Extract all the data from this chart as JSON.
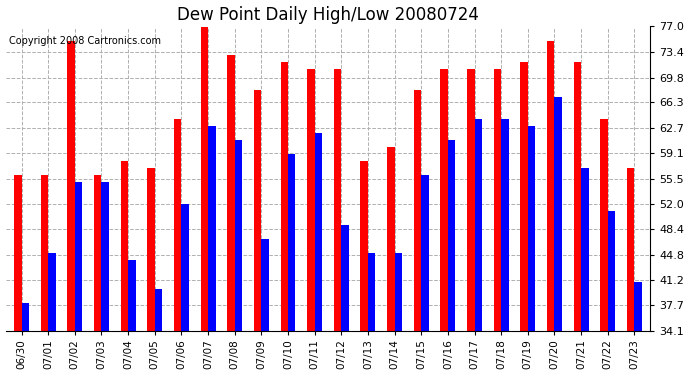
{
  "title": "Dew Point Daily High/Low 20080724",
  "copyright": "Copyright 2008 Cartronics.com",
  "dates": [
    "06/30",
    "07/01",
    "07/02",
    "07/03",
    "07/04",
    "07/05",
    "07/06",
    "07/07",
    "07/08",
    "07/09",
    "07/10",
    "07/11",
    "07/12",
    "07/13",
    "07/14",
    "07/15",
    "07/16",
    "07/17",
    "07/18",
    "07/19",
    "07/20",
    "07/21",
    "07/22",
    "07/23"
  ],
  "highs": [
    56.0,
    56.0,
    75.0,
    56.0,
    58.0,
    57.0,
    64.0,
    77.0,
    73.0,
    68.0,
    72.0,
    71.0,
    71.0,
    58.0,
    60.0,
    68.0,
    71.0,
    71.0,
    71.0,
    72.0,
    75.0,
    72.0,
    64.0,
    57.0
  ],
  "lows": [
    38.0,
    45.0,
    55.0,
    55.0,
    44.0,
    40.0,
    52.0,
    63.0,
    61.0,
    47.0,
    59.0,
    62.0,
    49.0,
    45.0,
    45.0,
    56.0,
    61.0,
    64.0,
    64.0,
    63.0,
    67.0,
    57.0,
    51.0,
    41.0
  ],
  "high_color": "#ff0000",
  "low_color": "#0000ff",
  "bg_color": "#ffffff",
  "grid_color": "#b0b0b0",
  "ymin": 34.1,
  "ymax": 77.0,
  "yticks": [
    34.1,
    37.7,
    41.2,
    44.8,
    48.4,
    52.0,
    55.5,
    59.1,
    62.7,
    66.3,
    69.8,
    73.4,
    77.0
  ],
  "bar_width": 0.28,
  "figsize": [
    6.9,
    3.75
  ],
  "dpi": 100
}
